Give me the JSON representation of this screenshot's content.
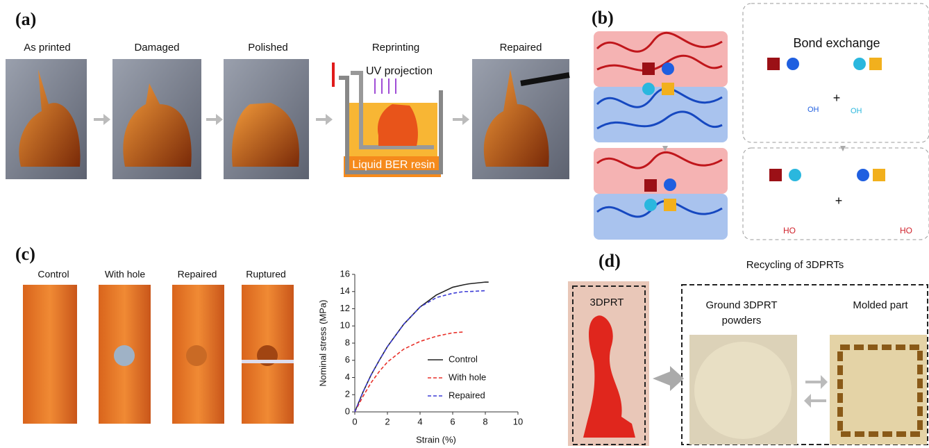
{
  "panels": {
    "a": {
      "label": "(a)",
      "captions": [
        "As printed",
        "Damaged",
        "Polished",
        "Reprinting",
        "Repaired"
      ],
      "uv": "UV projection",
      "resin": "Liquid BER resin"
    },
    "b": {
      "label": "(b)",
      "title": "Bond exchange",
      "plus": [
        "+",
        "+"
      ],
      "groups": [
        "OH",
        "OH",
        "HO",
        "HO"
      ]
    },
    "c": {
      "label": "(c)",
      "captions": [
        "Control",
        "With hole",
        "Repaired",
        "Ruptured"
      ]
    },
    "d": {
      "label": "(d)",
      "title": "Recycling of 3DPRTs",
      "part": "3DPRT",
      "powder": [
        "Ground 3DPRT",
        "powders"
      ],
      "molded": "Molded part"
    }
  },
  "chart_data": {
    "type": "line",
    "xlabel": "Strain (%)",
    "ylabel": "Nominal stress (MPa)",
    "x": [
      0,
      0.5,
      1,
      1.5,
      2,
      3,
      4,
      5,
      6,
      6.7,
      7,
      8,
      8.2
    ],
    "series": [
      {
        "name": "Control",
        "color": "#222222",
        "dash": "solid",
        "values": [
          0,
          2.3,
          4.3,
          6,
          7.6,
          10.2,
          12.2,
          13.6,
          14.5,
          14.8,
          14.9,
          15.1,
          15.1
        ]
      },
      {
        "name": "With hole",
        "color": "#e8312a",
        "dash": "dashed",
        "values": [
          0,
          1.8,
          3.4,
          4.7,
          5.8,
          7.3,
          8.2,
          8.8,
          9.2,
          9.3,
          null,
          null,
          null
        ]
      },
      {
        "name": "Repaired",
        "color": "#3b3bd6",
        "dash": "dashed",
        "values": [
          0,
          2.3,
          4.3,
          6,
          7.6,
          10.2,
          12.2,
          13.3,
          13.8,
          14,
          14,
          14.1,
          null
        ]
      }
    ],
    "xlim": [
      0,
      10
    ],
    "xticks": [
      0,
      2,
      4,
      6,
      8,
      10
    ],
    "ylim": [
      0,
      16
    ],
    "yticks": [
      0,
      2,
      4,
      6,
      8,
      10,
      12,
      14,
      16
    ],
    "legend": "lower right"
  }
}
